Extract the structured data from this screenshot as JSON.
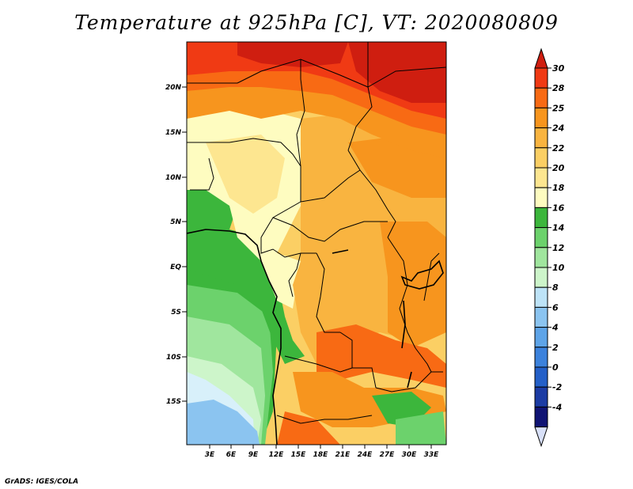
{
  "title": "Temperature at 925hPa [C], VT: 2020080809",
  "credit": "GrADS: IGES/COLA",
  "lat_ticks": [
    "20N",
    "15N",
    "10N",
    "5N",
    "EQ",
    "5S",
    "10S",
    "15S"
  ],
  "lon_ticks": [
    "3E",
    "6E",
    "9E",
    "12E",
    "15E",
    "18E",
    "21E",
    "24E",
    "27E",
    "30E",
    "33E"
  ],
  "colorbar": {
    "labels": [
      "30",
      "28",
      "25",
      "24",
      "22",
      "20",
      "18",
      "16",
      "14",
      "12",
      "10",
      "8",
      "6",
      "4",
      "2",
      "0",
      "-2",
      "-4"
    ],
    "colors": [
      "#f03a14",
      "#f86a14",
      "#f7951e",
      "#f9b440",
      "#fbcf64",
      "#fde690",
      "#fefcc0",
      "#3cb63c",
      "#6cd26c",
      "#a0e69e",
      "#cdf5ca",
      "#bde3f7",
      "#8bc4f0",
      "#5ea4e8",
      "#3c82dc",
      "#2460c8",
      "#1c3ca4",
      "#101474"
    ],
    "top_color": "#cf1e10",
    "bottom_color": "#d8e0f8"
  }
}
